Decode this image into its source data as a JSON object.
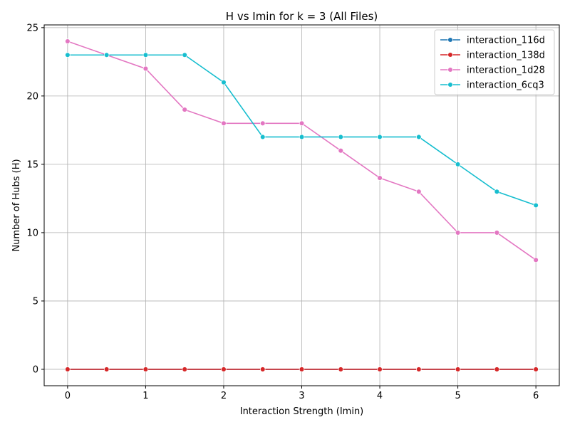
{
  "chart_data": {
    "type": "line",
    "title": "H vs Imin for k = 3 (All Files)",
    "xlabel": "Interaction Strength (Imin)",
    "ylabel": "Number of Hubs (H)",
    "xlim": [
      -0.3,
      6.3
    ],
    "ylim": [
      -1.2,
      25.2
    ],
    "xticks": [
      0,
      1,
      2,
      3,
      4,
      5,
      6
    ],
    "xtick_labels": [
      "0",
      "1",
      "2",
      "3",
      "4",
      "5",
      "6"
    ],
    "yticks": [
      0,
      5,
      10,
      15,
      20,
      25
    ],
    "ytick_labels": [
      "0",
      "5",
      "10",
      "15",
      "20",
      "25"
    ],
    "grid": true,
    "legend_position": "top-right",
    "x": [
      0,
      0.5,
      1,
      1.5,
      2,
      2.5,
      3,
      3.5,
      4,
      4.5,
      5,
      5.5,
      6
    ],
    "series": [
      {
        "name": "interaction_116d",
        "color": "#1f77b4",
        "values": [
          0,
          0,
          0,
          0,
          0,
          0,
          0,
          0,
          0,
          0,
          0,
          0,
          0
        ]
      },
      {
        "name": "interaction_138d",
        "color": "#d62728",
        "values": [
          0,
          0,
          0,
          0,
          0,
          0,
          0,
          0,
          0,
          0,
          0,
          0,
          0
        ]
      },
      {
        "name": "interaction_1d28",
        "color": "#e377c2",
        "values": [
          24,
          23,
          22,
          19,
          18,
          18,
          18,
          16,
          14,
          13,
          10,
          10,
          8
        ]
      },
      {
        "name": "interaction_6cq3",
        "color": "#17becf",
        "values": [
          23,
          23,
          23,
          23,
          21,
          17,
          17,
          17,
          17,
          17,
          15,
          13,
          12
        ]
      }
    ]
  }
}
